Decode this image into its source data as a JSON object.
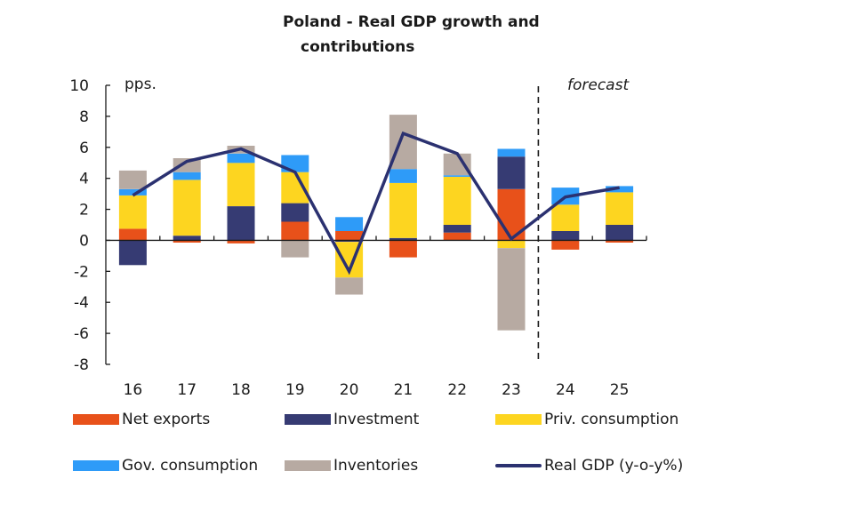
{
  "chart_data": {
    "type": "bar",
    "stacked": true,
    "title": "Poland - Real GDP growth and contributions",
    "title_lines": [
      "Poland - Real GDP growth and",
      "contributions"
    ],
    "xlabel": "",
    "ylabel": "pps.",
    "ylim": [
      -8,
      10
    ],
    "yticks": [
      10,
      8,
      6,
      4,
      2,
      0,
      -2,
      -4,
      -6,
      -8
    ],
    "ytick_labels": [
      "10",
      "8",
      "6",
      "4",
      "2",
      "0",
      "-2",
      "-4",
      "-6",
      "-8"
    ],
    "categories": [
      "16",
      "17",
      "18",
      "19",
      "20",
      "21",
      "22",
      "23",
      "24",
      "25"
    ],
    "forecast_start_index": 8,
    "forecast_label": "forecast",
    "grid": false,
    "legend_position": "bottom",
    "series": [
      {
        "name": "Net exports",
        "kind": "bar",
        "color": "#E8511A",
        "values": [
          0.75,
          -0.15,
          -0.2,
          1.2,
          0.6,
          -1.1,
          0.5,
          3.3,
          -0.6,
          -0.15
        ]
      },
      {
        "name": "Investment",
        "kind": "bar",
        "color": "#363B73",
        "values": [
          -1.6,
          0.3,
          2.2,
          1.2,
          -0.1,
          0.15,
          0.5,
          2.1,
          0.6,
          1.0
        ]
      },
      {
        "name": "Priv. consumption",
        "kind": "bar",
        "color": "#FDD520",
        "values": [
          2.15,
          3.6,
          2.8,
          2.0,
          -2.3,
          3.55,
          3.1,
          -0.5,
          1.7,
          2.1
        ]
      },
      {
        "name": "Gov. consumption",
        "kind": "bar",
        "color": "#2E9BF8",
        "values": [
          0.4,
          0.5,
          0.6,
          1.1,
          0.9,
          0.9,
          0.1,
          0.5,
          1.1,
          0.4
        ]
      },
      {
        "name": "Inventories",
        "kind": "bar",
        "color": "#B7AAA2",
        "values": [
          1.2,
          0.9,
          0.5,
          -1.1,
          -1.1,
          3.5,
          1.4,
          -5.3,
          0.0,
          0.0
        ]
      },
      {
        "name": "Real GDP (y-o-y%)",
        "kind": "line",
        "color": "#2B3170",
        "values": [
          2.9,
          5.1,
          5.9,
          4.4,
          -2.0,
          6.9,
          5.6,
          0.1,
          2.8,
          3.4
        ]
      }
    ]
  },
  "legend": {
    "items": [
      {
        "label": "Net exports",
        "color": "#E8511A",
        "kind": "bar"
      },
      {
        "label": "Investment",
        "color": "#363B73",
        "kind": "bar"
      },
      {
        "label": "Priv. consumption",
        "color": "#FDD520",
        "kind": "bar"
      },
      {
        "label": "Gov. consumption",
        "color": "#2E9BF8",
        "kind": "bar"
      },
      {
        "label": "Inventories",
        "color": "#B7AAA2",
        "kind": "bar"
      },
      {
        "label": "Real GDP (y-o-y%)",
        "color": "#2B3170",
        "kind": "line"
      }
    ]
  }
}
